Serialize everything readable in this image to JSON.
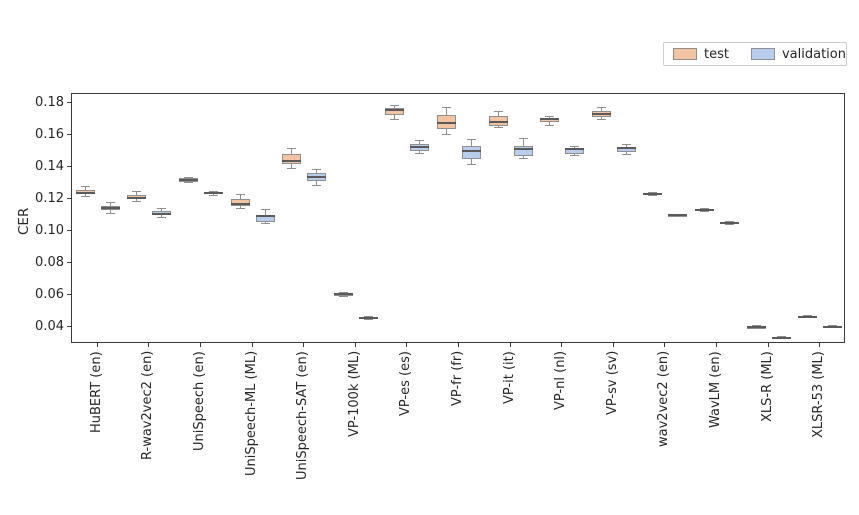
{
  "figure": {
    "background": "#ffffff"
  },
  "legend": {
    "items": [
      {
        "label": "test",
        "color": "#f2c4a2"
      },
      {
        "label": "validation",
        "color": "#b8cdec"
      }
    ]
  },
  "chart_data": {
    "type": "boxplot",
    "title": "",
    "xlabel": "",
    "ylabel": "CER",
    "grid": false,
    "legend": [
      "test",
      "validation"
    ],
    "legend_position": "top-right above plot",
    "categories": [
      "HuBERT (en)",
      "R-wav2vec2 (en)",
      "UniSpeech (en)",
      "UniSpeech-ML (ML)",
      "UniSpeech-SAT (en)",
      "VP-100k (ML)",
      "VP-es (es)",
      "VP-fr (fr)",
      "VP-it (it)",
      "VP-nl (nl)",
      "VP-sv (sv)",
      "wav2vec2 (en)",
      "WavLM (en)",
      "XLS-R (ML)",
      "XLSR-53 (ML)"
    ],
    "ytick_labels": [
      "0.18",
      "0.16",
      "0.14",
      "0.12",
      "0.10",
      "0.08",
      "0.06",
      "0.04"
    ],
    "ytick_values": [
      0.18,
      0.16,
      0.14,
      0.12,
      0.1,
      0.08,
      0.06,
      0.04
    ],
    "ylim": [
      0.03,
      0.186
    ],
    "box_format": [
      "whisker_low",
      "q1",
      "median",
      "q3",
      "whisker_high"
    ],
    "colors": {
      "box_edge": "#8f8f8f",
      "median": "#5a5a5a",
      "whisker": "#8f8f8f",
      "spine": "#3a3a3a",
      "text": "#262626"
    },
    "series": [
      {
        "name": "test",
        "fill": "#f2c4a2",
        "boxes": [
          [
            0.1222,
            0.1238,
            0.1245,
            0.1263,
            0.1285
          ],
          [
            0.1189,
            0.1202,
            0.1213,
            0.1231,
            0.1252
          ],
          [
            0.1305,
            0.1313,
            0.1324,
            0.1334,
            0.1342
          ],
          [
            0.1148,
            0.1164,
            0.1172,
            0.1205,
            0.1231
          ],
          [
            0.1395,
            0.1423,
            0.144,
            0.1486,
            0.1523
          ],
          [
            0.0598,
            0.0604,
            0.0609,
            0.0615,
            0.0621
          ],
          [
            0.17,
            0.1731,
            0.1759,
            0.1773,
            0.1787
          ],
          [
            0.1605,
            0.164,
            0.168,
            0.173,
            0.1775
          ],
          [
            0.1648,
            0.1663,
            0.1688,
            0.1725,
            0.1752
          ],
          [
            0.1663,
            0.1683,
            0.1703,
            0.1711,
            0.1721
          ],
          [
            0.1704,
            0.1719,
            0.1736,
            0.1756,
            0.1773
          ],
          [
            0.1228,
            0.1232,
            0.1236,
            0.1241,
            0.1245
          ],
          [
            0.1128,
            0.1132,
            0.1136,
            0.1141,
            0.1145
          ],
          [
            0.0396,
            0.04,
            0.0404,
            0.0409,
            0.0413
          ],
          [
            0.0463,
            0.0467,
            0.0471,
            0.0475,
            0.0479
          ]
        ]
      },
      {
        "name": "validation",
        "fill": "#b8cdec",
        "boxes": [
          [
            0.1117,
            0.1133,
            0.1148,
            0.1164,
            0.1181
          ],
          [
            0.1092,
            0.1102,
            0.1113,
            0.1127,
            0.1144
          ],
          [
            0.1226,
            0.1233,
            0.124,
            0.1247,
            0.1253
          ],
          [
            0.105,
            0.1064,
            0.1098,
            0.1106,
            0.1139
          ],
          [
            0.129,
            0.1314,
            0.1339,
            0.1367,
            0.1386
          ],
          [
            0.045,
            0.0455,
            0.046,
            0.0466,
            0.0471
          ],
          [
            0.1486,
            0.1506,
            0.1531,
            0.1548,
            0.1569
          ],
          [
            0.1419,
            0.1454,
            0.1505,
            0.1538,
            0.1573
          ],
          [
            0.146,
            0.1475,
            0.1515,
            0.1538,
            0.1582
          ],
          [
            0.1477,
            0.1486,
            0.1517,
            0.1523,
            0.1533
          ],
          [
            0.1484,
            0.1496,
            0.1522,
            0.1531,
            0.1548
          ],
          [
            0.1096,
            0.11,
            0.1103,
            0.1107,
            0.1111
          ],
          [
            0.1048,
            0.1052,
            0.1056,
            0.106,
            0.1064
          ],
          [
            0.0333,
            0.0336,
            0.0339,
            0.0342,
            0.0345
          ],
          [
            0.04,
            0.0404,
            0.0408,
            0.0411,
            0.0414
          ]
        ]
      }
    ]
  }
}
